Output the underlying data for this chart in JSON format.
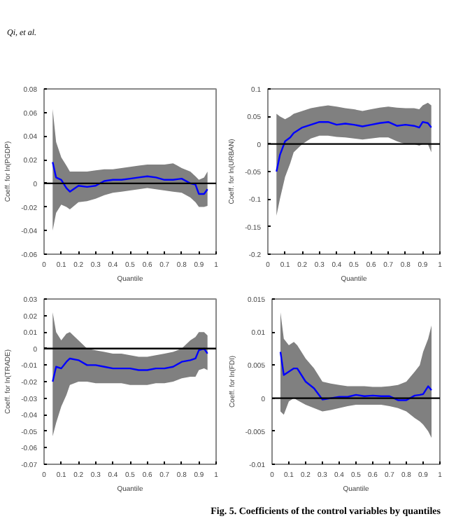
{
  "chart_data": [
    {
      "type": "line",
      "xlabel": "Quantile",
      "ylabel": "Coeff. for ln(PGDP)",
      "annotations": [
        "Qi, et al."
      ],
      "xlim": [
        0,
        1
      ],
      "xticks": [
        0,
        0.1,
        0.2,
        0.3,
        0.4,
        0.5,
        0.6,
        0.7,
        0.8,
        0.9,
        1
      ],
      "ylim": [
        -0.06,
        0.08
      ],
      "yticks": [
        -0.06,
        -0.04,
        -0.02,
        0,
        0.02,
        0.04,
        0.06,
        0.08
      ],
      "ref_lines": [
        {
          "axis": "y",
          "value": 0,
          "color": "#000000"
        }
      ],
      "x": [
        0.05,
        0.07,
        0.1,
        0.13,
        0.15,
        0.2,
        0.25,
        0.3,
        0.35,
        0.4,
        0.45,
        0.5,
        0.55,
        0.6,
        0.65,
        0.7,
        0.75,
        0.8,
        0.85,
        0.88,
        0.9,
        0.93,
        0.95
      ],
      "series": [
        {
          "color": "#0000ff",
          "values": [
            0.018,
            0.005,
            0.003,
            -0.004,
            -0.007,
            -0.002,
            -0.003,
            -0.002,
            0.002,
            0.003,
            0.003,
            0.004,
            0.005,
            0.006,
            0.005,
            0.003,
            0.003,
            0.004,
            0.0,
            -0.001,
            -0.009,
            -0.009,
            -0.005
          ],
          "upper": [
            0.063,
            0.035,
            0.022,
            0.015,
            0.01,
            0.01,
            0.01,
            0.011,
            0.012,
            0.012,
            0.013,
            0.014,
            0.015,
            0.016,
            0.016,
            0.016,
            0.017,
            0.013,
            0.01,
            0.006,
            0.003,
            0.005,
            0.01
          ],
          "lower": [
            -0.04,
            -0.025,
            -0.018,
            -0.02,
            -0.022,
            -0.016,
            -0.015,
            -0.013,
            -0.01,
            -0.008,
            -0.007,
            -0.006,
            -0.005,
            -0.004,
            -0.005,
            -0.006,
            -0.007,
            -0.008,
            -0.012,
            -0.016,
            -0.02,
            -0.02,
            -0.019
          ]
        }
      ]
    },
    {
      "type": "line",
      "xlabel": "Quantile",
      "ylabel": "Coeff. for ln(URBAN)",
      "xlim": [
        0,
        1
      ],
      "xticks": [
        0,
        0.1,
        0.2,
        0.3,
        0.4,
        0.5,
        0.6,
        0.7,
        0.8,
        0.9,
        1
      ],
      "ylim": [
        -0.2,
        0.1
      ],
      "yticks": [
        -0.2,
        -0.15,
        -0.1,
        -0.05,
        0,
        0.05,
        0.1
      ],
      "ref_lines": [
        {
          "axis": "y",
          "value": 0,
          "color": "#000000"
        }
      ],
      "x": [
        0.05,
        0.07,
        0.1,
        0.13,
        0.15,
        0.2,
        0.25,
        0.3,
        0.35,
        0.4,
        0.45,
        0.5,
        0.55,
        0.6,
        0.65,
        0.7,
        0.75,
        0.8,
        0.85,
        0.88,
        0.9,
        0.93,
        0.95
      ],
      "series": [
        {
          "color": "#0000ff",
          "values": [
            -0.05,
            -0.02,
            0.005,
            0.012,
            0.02,
            0.03,
            0.035,
            0.04,
            0.04,
            0.035,
            0.037,
            0.035,
            0.032,
            0.035,
            0.038,
            0.04,
            0.033,
            0.035,
            0.033,
            0.03,
            0.04,
            0.038,
            0.03
          ],
          "upper": [
            0.055,
            0.05,
            0.045,
            0.05,
            0.055,
            0.06,
            0.065,
            0.068,
            0.07,
            0.068,
            0.065,
            0.063,
            0.06,
            0.063,
            0.066,
            0.068,
            0.066,
            0.065,
            0.065,
            0.063,
            0.07,
            0.075,
            0.07
          ],
          "lower": [
            -0.13,
            -0.1,
            -0.06,
            -0.035,
            -0.015,
            0.0,
            0.01,
            0.015,
            0.015,
            0.013,
            0.012,
            0.01,
            0.008,
            0.01,
            0.012,
            0.012,
            0.005,
            0.0,
            0.0,
            -0.003,
            0.0,
            0.0,
            -0.015
          ]
        }
      ]
    },
    {
      "type": "line",
      "xlabel": "Quantile",
      "ylabel": "Coeff. for ln(TRADE)",
      "xlim": [
        0,
        1
      ],
      "xticks": [
        0,
        0.1,
        0.2,
        0.3,
        0.4,
        0.5,
        0.6,
        0.7,
        0.8,
        0.9,
        1
      ],
      "ylim": [
        -0.07,
        0.03
      ],
      "yticks": [
        -0.07,
        -0.06,
        -0.05,
        -0.04,
        -0.03,
        -0.02,
        -0.01,
        0,
        0.01,
        0.02,
        0.03
      ],
      "ref_lines": [
        {
          "axis": "y",
          "value": 0,
          "color": "#000000"
        }
      ],
      "x": [
        0.05,
        0.07,
        0.1,
        0.13,
        0.15,
        0.2,
        0.25,
        0.3,
        0.35,
        0.4,
        0.45,
        0.5,
        0.55,
        0.6,
        0.65,
        0.7,
        0.75,
        0.8,
        0.85,
        0.88,
        0.9,
        0.93,
        0.95
      ],
      "series": [
        {
          "color": "#0000ff",
          "values": [
            -0.02,
            -0.011,
            -0.012,
            -0.008,
            -0.006,
            -0.007,
            -0.01,
            -0.01,
            -0.011,
            -0.012,
            -0.012,
            -0.012,
            -0.013,
            -0.013,
            -0.012,
            -0.012,
            -0.011,
            -0.008,
            -0.007,
            -0.006,
            -0.001,
            0.0,
            -0.003
          ],
          "upper": [
            0.022,
            0.01,
            0.005,
            0.009,
            0.01,
            0.005,
            0.0,
            -0.001,
            -0.002,
            -0.003,
            -0.003,
            -0.004,
            -0.005,
            -0.005,
            -0.004,
            -0.003,
            -0.002,
            0.0,
            0.005,
            0.007,
            0.01,
            0.01,
            0.008
          ],
          "lower": [
            -0.053,
            -0.045,
            -0.035,
            -0.028,
            -0.022,
            -0.02,
            -0.02,
            -0.021,
            -0.021,
            -0.021,
            -0.021,
            -0.022,
            -0.022,
            -0.022,
            -0.021,
            -0.021,
            -0.02,
            -0.018,
            -0.017,
            -0.017,
            -0.013,
            -0.012,
            -0.013
          ]
        }
      ]
    },
    {
      "type": "line",
      "xlabel": "Quantile",
      "ylabel": "Coeff. for ln(FDI)",
      "annotations": [
        "Fig. 5. Coefficients of the control variables by quantiles"
      ],
      "xlim": [
        0,
        1
      ],
      "xticks": [
        0,
        0.1,
        0.2,
        0.3,
        0.4,
        0.5,
        0.6,
        0.7,
        0.8,
        0.9,
        1
      ],
      "ylim": [
        -0.01,
        0.015
      ],
      "yticks": [
        -0.01,
        -0.005,
        0,
        0.005,
        0.01,
        0.015
      ],
      "ref_lines": [
        {
          "axis": "y",
          "value": 0,
          "color": "#000000"
        }
      ],
      "x": [
        0.05,
        0.07,
        0.1,
        0.13,
        0.15,
        0.2,
        0.25,
        0.3,
        0.35,
        0.4,
        0.45,
        0.5,
        0.55,
        0.6,
        0.65,
        0.7,
        0.75,
        0.8,
        0.85,
        0.88,
        0.9,
        0.93,
        0.95
      ],
      "series": [
        {
          "color": "#0000ff",
          "values": [
            0.007,
            0.0035,
            0.004,
            0.0045,
            0.0045,
            0.0025,
            0.0015,
            -0.0002,
            0.0,
            0.0002,
            0.0002,
            0.0005,
            0.0003,
            0.0004,
            0.0003,
            0.0003,
            -0.0003,
            -0.0003,
            0.0004,
            0.0005,
            0.0006,
            0.0018,
            0.0012
          ],
          "upper": [
            0.013,
            0.009,
            0.008,
            0.0085,
            0.008,
            0.006,
            0.0045,
            0.0025,
            0.0022,
            0.002,
            0.0018,
            0.0018,
            0.0018,
            0.0017,
            0.0017,
            0.0018,
            0.002,
            0.0025,
            0.004,
            0.005,
            0.007,
            0.009,
            0.011
          ],
          "lower": [
            -0.002,
            -0.0025,
            -0.0005,
            0.0,
            -0.0003,
            -0.001,
            -0.0015,
            -0.002,
            -0.0018,
            -0.0015,
            -0.0012,
            -0.001,
            -0.001,
            -0.001,
            -0.001,
            -0.0012,
            -0.0015,
            -0.002,
            -0.003,
            -0.0035,
            -0.004,
            -0.005,
            -0.006
          ]
        }
      ]
    }
  ]
}
